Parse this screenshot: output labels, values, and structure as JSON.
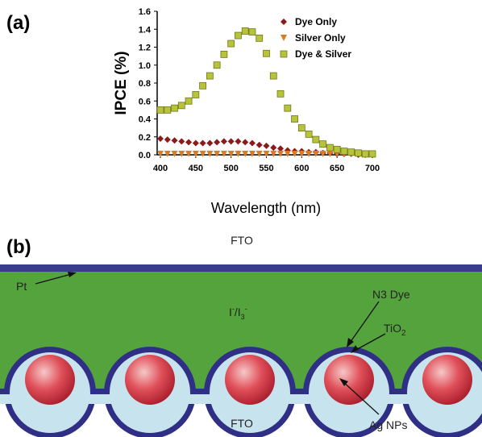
{
  "panel_labels": [
    "(a)",
    "(b)"
  ],
  "chart_data": {
    "type": "scatter",
    "y_label": "IPCE (%)",
    "x_label": "Wavelength (nm)",
    "x": [
      400,
      410,
      420,
      430,
      440,
      450,
      460,
      470,
      480,
      490,
      500,
      510,
      520,
      530,
      540,
      550,
      560,
      570,
      580,
      590,
      600,
      610,
      620,
      630,
      640,
      650,
      660,
      670,
      680,
      690,
      700
    ],
    "series": [
      {
        "name": "Dye Only",
        "color": "#8b1a1a",
        "marker": "diamond",
        "values": [
          0.18,
          0.17,
          0.16,
          0.15,
          0.14,
          0.13,
          0.13,
          0.13,
          0.14,
          0.15,
          0.15,
          0.15,
          0.14,
          0.13,
          0.11,
          0.1,
          0.08,
          0.07,
          0.05,
          0.04,
          0.04,
          0.03,
          0.03,
          0.02,
          0.02,
          0.01,
          0.01,
          0.01,
          0,
          0,
          0
        ]
      },
      {
        "name": "Silver Only",
        "color": "#e07a1f",
        "marker": "triangle-down",
        "values": [
          0.01,
          0.01,
          0.01,
          0.01,
          0.01,
          0.01,
          0.01,
          0.01,
          0.01,
          0.01,
          0.01,
          0.01,
          0.01,
          0.01,
          0.01,
          0.01,
          0.01,
          0.01,
          0.01,
          0.01,
          0.01,
          0.01,
          0.01,
          0.01,
          0.01,
          0.01,
          0.01,
          0.01,
          0.01,
          0.01,
          0.01
        ]
      },
      {
        "name": "Dye & Silver",
        "color": "#b8c23a",
        "marker": "square",
        "values": [
          0.5,
          0.5,
          0.52,
          0.55,
          0.6,
          0.67,
          0.77,
          0.88,
          1.0,
          1.12,
          1.24,
          1.33,
          1.38,
          1.37,
          1.3,
          1.13,
          0.88,
          0.68,
          0.52,
          0.4,
          0.3,
          0.23,
          0.17,
          0.12,
          0.08,
          0.06,
          0.04,
          0.03,
          0.02,
          0.01,
          0.01
        ]
      }
    ],
    "xlim": [
      400,
      700
    ],
    "xticks": [
      400,
      450,
      500,
      550,
      600,
      650,
      700
    ],
    "ylim": [
      0,
      1.6
    ],
    "yticks": [
      {
        "value": 0,
        "label": "0.0"
      },
      0.2,
      0.4,
      0.6,
      0.8,
      {
        "value": 1,
        "label": "1.0"
      },
      1.2,
      1.4,
      1.6
    ],
    "legend": "upper right",
    "grid": false
  },
  "diagram": {
    "top_electrode": "FTO",
    "bottom_electrode": "FTO",
    "counter_layer": "Pt",
    "electrolyte": [
      "I",
      "-",
      "/I",
      "3",
      "-"
    ],
    "dye": "N3 Dye",
    "oxide": [
      "TiO",
      "2"
    ],
    "particles": "Ag NPs"
  }
}
